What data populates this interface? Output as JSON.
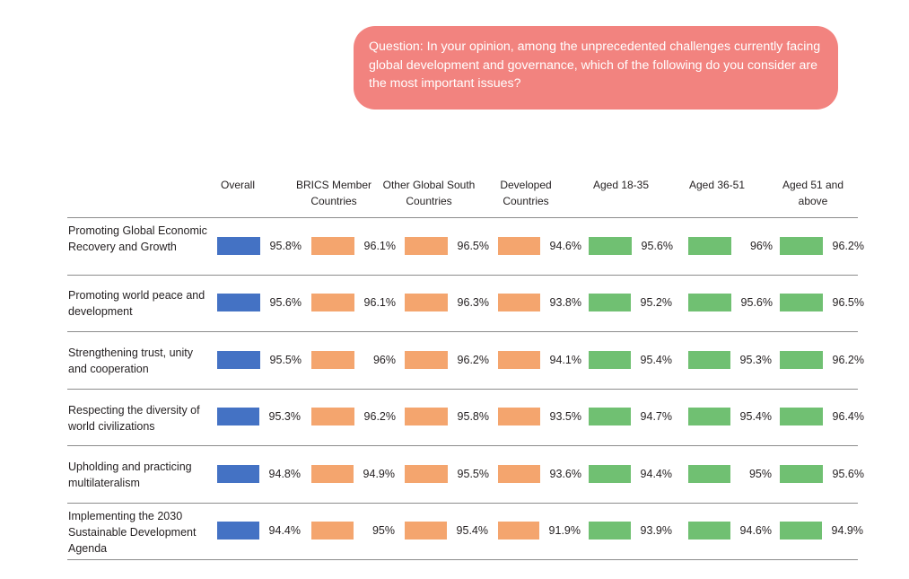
{
  "question": "Question: In your opinion, among the unprecedented challenges currently facing global development and governance, which of the following do you consider are the most important issues?",
  "colors": {
    "overall": "#4472c4",
    "countries": "#f4a56e",
    "ages": "#70c072",
    "bubble": "#f2837f"
  },
  "chart_data": {
    "type": "table",
    "columns": [
      "Overall",
      "BRICS Member Countries",
      "Other Global South Countries",
      "Developed Countries",
      "Aged 18-35",
      "Aged 36-51",
      "Aged 51 and above"
    ],
    "rows": [
      {
        "label": "Promoting Global Economic Recovery and Growth",
        "values": [
          95.8,
          96.1,
          96.5,
          94.6,
          95.6,
          96,
          96.2
        ],
        "display": [
          "95.8%",
          "96.1%",
          "96.5%",
          "94.6%",
          "95.6%",
          "96%",
          "96.2%"
        ]
      },
      {
        "label": "Promoting world peace and development",
        "values": [
          95.6,
          96.1,
          96.3,
          93.8,
          95.2,
          95.6,
          96.5
        ],
        "display": [
          "95.6%",
          "96.1%",
          "96.3%",
          "93.8%",
          "95.2%",
          "95.6%",
          "96.5%"
        ]
      },
      {
        "label": "Strengthening trust, unity and cooperation",
        "values": [
          95.5,
          96,
          96.2,
          94.1,
          95.4,
          95.3,
          96.2
        ],
        "display": [
          "95.5%",
          "96%",
          "96.2%",
          "94.1%",
          "95.4%",
          "95.3%",
          "96.2%"
        ]
      },
      {
        "label": "Respecting the diversity of world civilizations",
        "values": [
          95.3,
          96.2,
          95.8,
          93.5,
          94.7,
          95.4,
          96.4
        ],
        "display": [
          "95.3%",
          "96.2%",
          "95.8%",
          "93.5%",
          "94.7%",
          "95.4%",
          "96.4%"
        ]
      },
      {
        "label": "Upholding and practicing multilateralism",
        "values": [
          94.8,
          94.9,
          95.5,
          93.6,
          94.4,
          95,
          95.6
        ],
        "display": [
          "94.8%",
          "94.9%",
          "95.5%",
          "93.6%",
          "94.4%",
          "95%",
          "95.6%"
        ]
      },
      {
        "label": "Implementing the 2030 Sustainable Development Agenda",
        "values": [
          94.4,
          95,
          95.4,
          91.9,
          93.9,
          94.6,
          94.9
        ],
        "display": [
          "94.4%",
          "95%",
          "95.4%",
          "91.9%",
          "93.9%",
          "94.6%",
          "94.9%"
        ]
      }
    ]
  }
}
